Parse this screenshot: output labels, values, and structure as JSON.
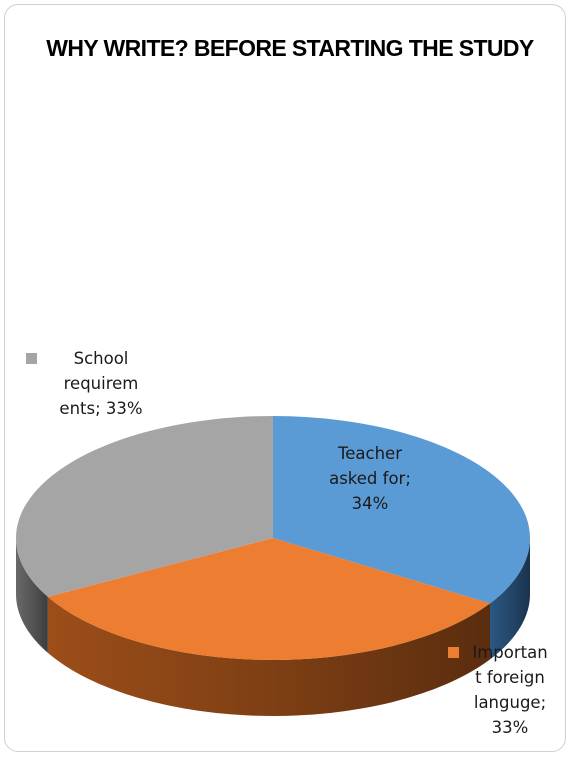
{
  "chart_data": {
    "type": "pie",
    "title": "WHY WRITE? BEFORE STARTING THE STUDY",
    "three_d": true,
    "slices": [
      {
        "label": "Teacher asked for",
        "value": 34,
        "display": "Teacher\nasked for;\n34%",
        "color": "#5b9bd5",
        "side_color": "#2e5c8a"
      },
      {
        "label": "Importan t foreign languge",
        "value": 33,
        "display": "Importan\nt foreign\nlanguge;\n33%",
        "color": "#ed7d31",
        "side_color": "#a4521a"
      },
      {
        "label": "School requirem ents",
        "value": 33,
        "display": "School\nrequirem\nents; 33%",
        "color": "#a5a5a5",
        "side_color": "#6e6e6e"
      }
    ]
  }
}
